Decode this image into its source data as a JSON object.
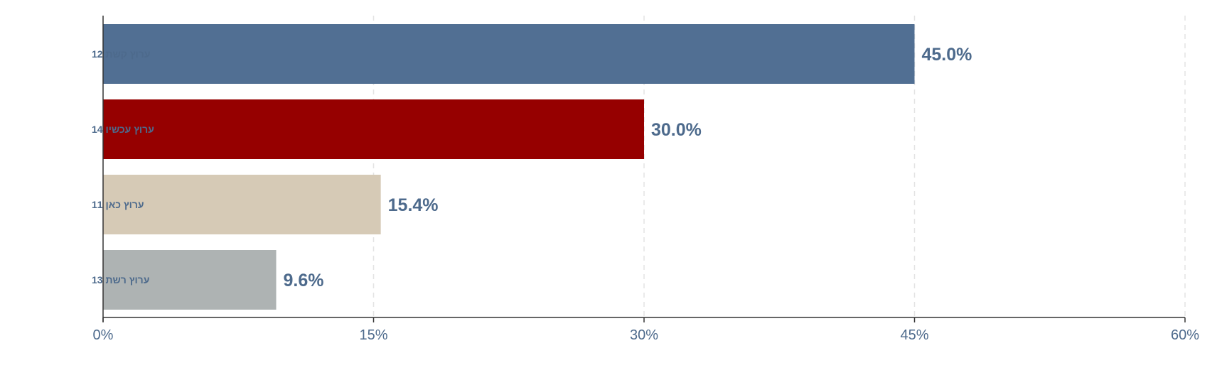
{
  "chart_data": {
    "type": "bar",
    "orientation": "horizontal",
    "categories": [
      "ערוץ קשת 12",
      "ערוץ עכשיו 14",
      "ערוץ כאן 11",
      "ערוץ רשת 13"
    ],
    "values": [
      45.0,
      30.0,
      15.4,
      9.6
    ],
    "value_labels": [
      "45.0%",
      "30.0%",
      "15.4%",
      "9.6%"
    ],
    "colors": [
      "#516f93",
      "#960000",
      "#d6cab6",
      "#aeb3b3"
    ],
    "xlim": [
      0,
      60
    ],
    "xticks": [
      0,
      15,
      30,
      45,
      60
    ],
    "xtick_labels": [
      "0%",
      "15%",
      "30%",
      "45%",
      "60%"
    ],
    "grid": "vertical dashed",
    "title": "",
    "xlabel": "",
    "ylabel": ""
  }
}
